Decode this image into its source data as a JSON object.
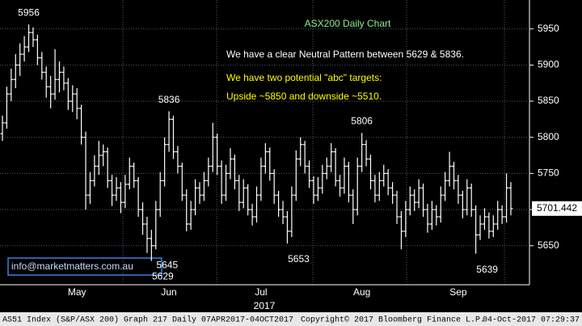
{
  "chart_data": {
    "type": "ohlc",
    "title": "ASX200 Daily Chart",
    "annotations": [
      {
        "text": "We have a clear Neutral Pattern between 5629 & 5836.",
        "color": "#ffffff"
      },
      {
        "text": "We have two potential \"abc\" targets:",
        "color": "#ffff00"
      },
      {
        "text": "Upside ~5850 and downside ~5510.",
        "color": "#ffff00"
      }
    ],
    "watermark": "info@marketmatters.com.au",
    "x_label": "2017",
    "footer": {
      "left": "AS51 Index (S&P/ASX 200) Graph 217  Daily 07APR2017-04OCT2017",
      "center": "Copyright© 2017 Bloomberg Finance L.P.",
      "right": "04-Oct-2017 07:29:37"
    },
    "color": "#ffffff",
    "ylim": [
      5596,
      5990
    ],
    "yticks": [
      5650,
      5700,
      5750,
      5800,
      5850,
      5900,
      5950
    ],
    "grid": true,
    "high_labels": [
      5956,
      5836,
      5806
    ],
    "low_labels": [
      5629,
      5653,
      5645,
      5639
    ],
    "categories": [
      null,
      null,
      null,
      null,
      null,
      null,
      null,
      null,
      null,
      null,
      null,
      null,
      null,
      null,
      null,
      null,
      null,
      "May",
      null,
      null,
      null,
      null,
      null,
      null,
      null,
      null,
      null,
      null,
      null,
      null,
      null,
      null,
      null,
      null,
      null,
      null,
      null,
      null,
      "Jun",
      null,
      null,
      null,
      null,
      null,
      null,
      null,
      null,
      null,
      null,
      null,
      null,
      null,
      null,
      null,
      null,
      null,
      null,
      null,
      null,
      "Jul",
      null,
      null,
      null,
      null,
      null,
      null,
      null,
      null,
      null,
      null,
      null,
      null,
      null,
      null,
      null,
      null,
      null,
      null,
      null,
      null,
      null,
      null,
      "Aug",
      null,
      null,
      null,
      null,
      null,
      null,
      null,
      null,
      null,
      null,
      null,
      null,
      null,
      null,
      null,
      null,
      null,
      null,
      null,
      null,
      null,
      "Sep",
      null,
      null,
      null,
      null,
      null,
      null,
      null,
      null,
      null,
      null,
      null,
      null
    ],
    "open": [
      5805,
      5820,
      5860,
      5880,
      5900,
      5915,
      5925,
      5945,
      5935,
      5910,
      5890,
      5870,
      5860,
      5880,
      5890,
      5875,
      5850,
      5860,
      5840,
      5800,
      5720,
      5740,
      5760,
      5775,
      5780,
      5740,
      5720,
      5730,
      5710,
      5735,
      5760,
      5740,
      5700,
      5680,
      5660,
      5650,
      5700,
      5740,
      5790,
      5825,
      5780,
      5760,
      5720,
      5680,
      5700,
      5730,
      5720,
      5740,
      5760,
      5800,
      5760,
      5720,
      5750,
      5770,
      5740,
      5710,
      5730,
      5700,
      5690,
      5720,
      5760,
      5780,
      5750,
      5720,
      5700,
      5690,
      5670,
      5720,
      5770,
      5790,
      5760,
      5740,
      5720,
      5730,
      5750,
      5760,
      5780,
      5740,
      5730,
      5760,
      5720,
      5700,
      5760,
      5790,
      5770,
      5740,
      5720,
      5740,
      5750,
      5730,
      5720,
      5690,
      5670,
      5700,
      5720,
      5710,
      5730,
      5700,
      5680,
      5700,
      5690,
      5720,
      5740,
      5760,
      5740,
      5720,
      5700,
      5730,
      5700,
      5665,
      5680,
      5690,
      5670,
      5680,
      5700,
      5690,
      5730
    ],
    "high": [
      5830,
      5870,
      5895,
      5915,
      5930,
      5940,
      5956,
      5952,
      5942,
      5918,
      5898,
      5885,
      5922,
      5905,
      5898,
      5882,
      5872,
      5868,
      5845,
      5808,
      5752,
      5775,
      5795,
      5790,
      5786,
      5748,
      5745,
      5738,
      5748,
      5772,
      5765,
      5745,
      5710,
      5690,
      5672,
      5712,
      5752,
      5800,
      5836,
      5830,
      5788,
      5765,
      5728,
      5712,
      5742,
      5738,
      5752,
      5772,
      5820,
      5805,
      5768,
      5762,
      5785,
      5776,
      5748,
      5742,
      5735,
      5708,
      5732,
      5772,
      5792,
      5786,
      5756,
      5726,
      5712,
      5698,
      5732,
      5782,
      5800,
      5795,
      5768,
      5746,
      5745,
      5762,
      5772,
      5792,
      5785,
      5748,
      5772,
      5766,
      5728,
      5772,
      5806,
      5796,
      5776,
      5748,
      5752,
      5762,
      5756,
      5738,
      5726,
      5698,
      5712,
      5732,
      5728,
      5742,
      5736,
      5708,
      5712,
      5706,
      5732,
      5752,
      5780,
      5766,
      5748,
      5726,
      5742,
      5736,
      5706,
      5692,
      5702,
      5696,
      5692,
      5712,
      5706,
      5750,
      5738
    ],
    "low": [
      5795,
      5812,
      5850,
      5868,
      5885,
      5905,
      5918,
      5925,
      5900,
      5880,
      5855,
      5840,
      5852,
      5862,
      5865,
      5838,
      5835,
      5825,
      5790,
      5700,
      5708,
      5732,
      5748,
      5760,
      5730,
      5705,
      5712,
      5695,
      5702,
      5728,
      5730,
      5690,
      5665,
      5640,
      5629,
      5645,
      5690,
      5732,
      5780,
      5770,
      5750,
      5712,
      5670,
      5672,
      5692,
      5708,
      5712,
      5732,
      5752,
      5748,
      5708,
      5712,
      5742,
      5728,
      5698,
      5702,
      5692,
      5678,
      5682,
      5712,
      5750,
      5740,
      5708,
      5690,
      5680,
      5653,
      5662,
      5712,
      5760,
      5750,
      5730,
      5708,
      5712,
      5722,
      5742,
      5752,
      5732,
      5718,
      5722,
      5710,
      5680,
      5692,
      5752,
      5760,
      5728,
      5710,
      5712,
      5732,
      5720,
      5708,
      5680,
      5645,
      5662,
      5692,
      5698,
      5702,
      5690,
      5668,
      5672,
      5678,
      5682,
      5712,
      5732,
      5728,
      5708,
      5688,
      5692,
      5690,
      5639,
      5658,
      5672,
      5660,
      5662,
      5672,
      5680,
      5682,
      5692
    ],
    "close": [
      5820,
      5860,
      5880,
      5900,
      5915,
      5925,
      5945,
      5935,
      5910,
      5890,
      5870,
      5860,
      5880,
      5890,
      5875,
      5850,
      5860,
      5840,
      5800,
      5720,
      5740,
      5760,
      5775,
      5780,
      5740,
      5720,
      5730,
      5710,
      5735,
      5760,
      5740,
      5700,
      5680,
      5660,
      5650,
      5700,
      5740,
      5790,
      5825,
      5780,
      5760,
      5720,
      5680,
      5700,
      5730,
      5720,
      5740,
      5760,
      5800,
      5760,
      5720,
      5750,
      5770,
      5740,
      5710,
      5730,
      5700,
      5690,
      5720,
      5760,
      5780,
      5750,
      5720,
      5700,
      5690,
      5670,
      5720,
      5770,
      5790,
      5760,
      5740,
      5720,
      5730,
      5750,
      5760,
      5780,
      5740,
      5730,
      5760,
      5720,
      5700,
      5760,
      5790,
      5770,
      5740,
      5720,
      5740,
      5750,
      5730,
      5720,
      5690,
      5670,
      5700,
      5720,
      5710,
      5730,
      5700,
      5680,
      5700,
      5690,
      5720,
      5740,
      5760,
      5740,
      5720,
      5700,
      5730,
      5700,
      5665,
      5680,
      5690,
      5670,
      5680,
      5700,
      5690,
      5730,
      5701.442
    ]
  }
}
